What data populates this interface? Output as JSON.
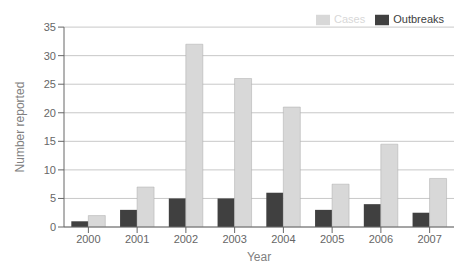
{
  "chart_data": {
    "type": "bar",
    "categories": [
      "2000",
      "2001",
      "2002",
      "2003",
      "2004",
      "2005",
      "2006",
      "2007"
    ],
    "series": [
      {
        "name": "Outbreaks",
        "color": "#404040",
        "values": [
          1,
          3,
          5,
          5,
          6,
          3,
          4,
          2.5
        ]
      },
      {
        "name": "Cases",
        "color": "#d8d8d8",
        "values": [
          2,
          7,
          32,
          26,
          21,
          7.5,
          14.5,
          8.5
        ]
      }
    ],
    "xlabel": "Year",
    "ylabel": "Number reported",
    "ylim": [
      0,
      35
    ],
    "yticks": [
      0,
      5,
      10,
      15,
      20,
      25,
      30,
      35
    ],
    "grid": true,
    "legend": "upper right"
  }
}
